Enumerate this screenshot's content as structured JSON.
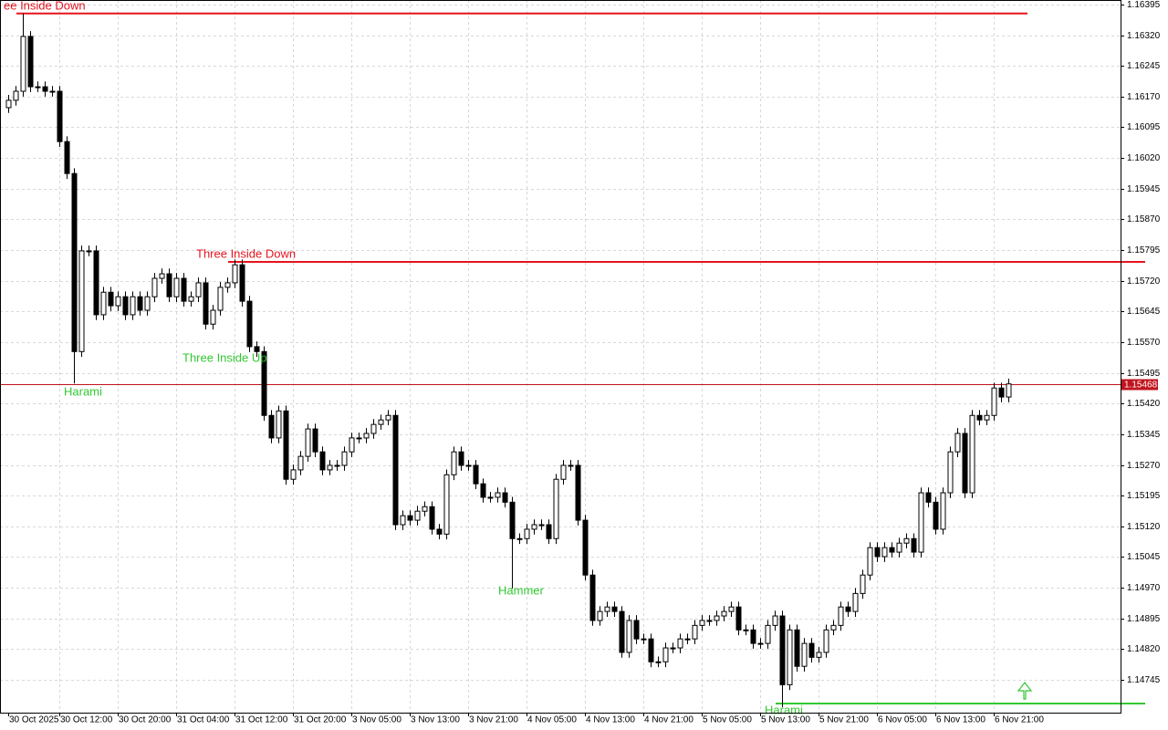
{
  "chart_data": {
    "type": "candlestick",
    "categories": [
      "30 Oct 2025",
      null,
      null,
      null,
      null,
      null,
      null,
      "30 Oct 12:00",
      null,
      null,
      null,
      null,
      null,
      null,
      null,
      "30 Oct 20:00",
      null,
      null,
      null,
      null,
      null,
      null,
      null,
      "31 Oct 04:00",
      null,
      null,
      null,
      null,
      null,
      null,
      null,
      "31 Oct 12:00",
      null,
      null,
      null,
      null,
      null,
      null,
      null,
      "31 Oct 20:00",
      null,
      null,
      null,
      null,
      null,
      null,
      null,
      "3 Nov 05:00",
      null,
      null,
      null,
      null,
      null,
      null,
      null,
      "3 Nov 13:00",
      null,
      null,
      null,
      null,
      null,
      null,
      null,
      "3 Nov 21:00",
      null,
      null,
      null,
      null,
      null,
      null,
      null,
      "4 Nov 05:00",
      null,
      null,
      null,
      null,
      null,
      null,
      null,
      "4 Nov 13:00",
      null,
      null,
      null,
      null,
      null,
      null,
      null,
      "4 Nov 21:00",
      null,
      null,
      null,
      null,
      null,
      null,
      null,
      "5 Nov 05:00",
      null,
      null,
      null,
      null,
      null,
      null,
      null,
      "5 Nov 13:00",
      null,
      null,
      null,
      null,
      null,
      null,
      null,
      "5 Nov 21:00",
      null,
      null,
      null,
      null,
      null,
      null,
      null,
      "6 Nov 05:00",
      null,
      null,
      null,
      null,
      null,
      null,
      null,
      "6 Nov 13:00",
      null,
      null,
      null,
      null,
      null,
      null,
      null,
      "6 Nov 21:00",
      null,
      null
    ],
    "open": [
      1.16143,
      1.16161,
      1.16183,
      1.16317,
      1.16194,
      1.16194,
      1.16183,
      1.16183,
      1.1606,
      1.15982,
      1.15547,
      1.15793,
      1.15793,
      1.15637,
      1.15692,
      1.15659,
      1.15681,
      1.15637,
      1.15681,
      1.15648,
      1.15681,
      1.15726,
      1.15737,
      1.15681,
      1.15726,
      1.1567,
      1.15681,
      1.15715,
      1.15614,
      1.15648,
      1.15704,
      1.15715,
      1.15759,
      1.1567,
      1.15559,
      1.15547,
      1.15391,
      1.15336,
      1.15402,
      1.15235,
      1.15258,
      1.15291,
      1.15358,
      1.15302,
      1.15258,
      1.15269,
      1.15269,
      1.15302,
      1.15336,
      1.15336,
      1.15347,
      1.15369,
      1.1538,
      1.15391,
      1.15124,
      1.15146,
      1.15135,
      1.15157,
      1.15168,
      1.15113,
      1.15101,
      1.15246,
      1.15302,
      1.15269,
      1.15269,
      1.15224,
      1.15191,
      1.15191,
      1.15202,
      1.15179,
      1.1509,
      1.1509,
      1.15113,
      1.15124,
      1.15124,
      1.1509,
      1.15235,
      1.15269,
      1.15269,
      1.15135,
      1.15001,
      1.1489,
      1.14912,
      1.14923,
      1.14912,
      1.14812,
      1.1489,
      1.14845,
      1.14845,
      1.14789,
      1.14789,
      1.14823,
      1.14823,
      1.14845,
      1.14845,
      1.14878,
      1.1489,
      1.1489,
      1.14901,
      1.14912,
      1.14923,
      1.14867,
      1.14867,
      1.14834,
      1.14834,
      1.14878,
      1.14901,
      1.14733,
      1.14867,
      1.14778,
      1.14834,
      1.148,
      1.14812,
      1.14867,
      1.14878,
      1.14923,
      1.14912,
      1.14956,
      1.15001,
      1.15068,
      1.15046,
      1.15068,
      1.15057,
      1.15079,
      1.1509,
      1.15057,
      1.15202,
      1.15179,
      1.15113,
      1.15202,
      1.15302,
      1.15347,
      1.15202,
      1.15391,
      1.1538,
      1.15391,
      1.15458,
      1.15436
    ],
    "high": [
      1.16174,
      1.16196,
      1.16373,
      1.1633,
      1.16207,
      1.16207,
      1.16196,
      1.16196,
      1.16073,
      1.15995,
      1.15806,
      1.15806,
      1.15806,
      1.15705,
      1.15705,
      1.15694,
      1.15694,
      1.15694,
      1.15694,
      1.15694,
      1.15739,
      1.1575,
      1.1575,
      1.15739,
      1.15739,
      1.15694,
      1.15728,
      1.15728,
      1.15661,
      1.15717,
      1.15728,
      1.15772,
      1.15772,
      1.15683,
      1.15572,
      1.1556,
      1.15404,
      1.15415,
      1.15415,
      1.15271,
      1.15304,
      1.15371,
      1.15371,
      1.15315,
      1.15282,
      1.15282,
      1.15315,
      1.15349,
      1.15349,
      1.1536,
      1.15382,
      1.15393,
      1.15404,
      1.15404,
      1.15159,
      1.15159,
      1.1517,
      1.15181,
      1.15181,
      1.15126,
      1.15259,
      1.15315,
      1.15315,
      1.15282,
      1.15282,
      1.15237,
      1.15204,
      1.15215,
      1.15215,
      1.15192,
      1.15103,
      1.15126,
      1.15137,
      1.15137,
      1.15137,
      1.15248,
      1.15282,
      1.15282,
      1.15282,
      1.15148,
      1.15014,
      1.14925,
      1.14936,
      1.14936,
      1.14925,
      1.14903,
      1.14903,
      1.14858,
      1.14858,
      1.14802,
      1.14836,
      1.14836,
      1.14858,
      1.14858,
      1.14891,
      1.14903,
      1.14903,
      1.14914,
      1.14925,
      1.14936,
      1.14936,
      1.1488,
      1.1488,
      1.14847,
      1.14891,
      1.14914,
      1.14914,
      1.1488,
      1.1488,
      1.14847,
      1.14847,
      1.14825,
      1.1488,
      1.14891,
      1.14936,
      1.14936,
      1.14969,
      1.15014,
      1.15081,
      1.15081,
      1.15081,
      1.15081,
      1.15092,
      1.15103,
      1.15103,
      1.15215,
      1.15215,
      1.15192,
      1.15215,
      1.15315,
      1.1536,
      1.1536,
      1.15404,
      1.15404,
      1.15404,
      1.15471,
      1.15471,
      1.15481
    ],
    "low": [
      1.1613,
      1.16148,
      1.1617,
      1.16181,
      1.16181,
      1.1617,
      1.1617,
      1.16047,
      1.15969,
      1.15469,
      1.15534,
      1.1578,
      1.15624,
      1.15624,
      1.15646,
      1.15646,
      1.15624,
      1.15624,
      1.15635,
      1.15635,
      1.15668,
      1.15713,
      1.15668,
      1.15668,
      1.15657,
      1.15657,
      1.15668,
      1.15601,
      1.15601,
      1.15635,
      1.15691,
      1.15702,
      1.15657,
      1.15546,
      1.15534,
      1.15378,
      1.15323,
      1.15323,
      1.15222,
      1.15222,
      1.15245,
      1.15278,
      1.15289,
      1.15245,
      1.15245,
      1.15256,
      1.15256,
      1.15289,
      1.15323,
      1.15323,
      1.15334,
      1.15356,
      1.15367,
      1.15111,
      1.15111,
      1.15122,
      1.15122,
      1.15144,
      1.151,
      1.15088,
      1.15088,
      1.15233,
      1.15256,
      1.15256,
      1.15211,
      1.15178,
      1.15178,
      1.15178,
      1.15166,
      1.14968,
      1.15077,
      1.15077,
      1.151,
      1.15111,
      1.15077,
      1.15077,
      1.15222,
      1.15256,
      1.15122,
      1.14988,
      1.14877,
      1.14877,
      1.14899,
      1.14899,
      1.14799,
      1.14799,
      1.14832,
      1.14832,
      1.14776,
      1.14776,
      1.14776,
      1.1481,
      1.1481,
      1.14832,
      1.14832,
      1.14865,
      1.14877,
      1.14877,
      1.14888,
      1.14899,
      1.14854,
      1.14854,
      1.14821,
      1.14821,
      1.14821,
      1.14865,
      1.14678,
      1.1472,
      1.14765,
      1.14765,
      1.14787,
      1.14787,
      1.14799,
      1.14854,
      1.14865,
      1.14899,
      1.14899,
      1.14943,
      1.14988,
      1.15033,
      1.15033,
      1.15044,
      1.15044,
      1.15066,
      1.15044,
      1.15044,
      1.15166,
      1.151,
      1.151,
      1.15189,
      1.15289,
      1.15189,
      1.15189,
      1.15367,
      1.15367,
      1.15378,
      1.15423,
      1.15423
    ],
    "close": [
      1.16161,
      1.16183,
      1.16317,
      1.16194,
      1.16194,
      1.16183,
      1.16183,
      1.1606,
      1.15982,
      1.15547,
      1.15793,
      1.15793,
      1.15637,
      1.15692,
      1.15659,
      1.15681,
      1.15637,
      1.15681,
      1.15648,
      1.15681,
      1.15726,
      1.15737,
      1.15681,
      1.15726,
      1.1567,
      1.15681,
      1.15715,
      1.15614,
      1.15648,
      1.15704,
      1.15715,
      1.15759,
      1.1567,
      1.15559,
      1.15547,
      1.15391,
      1.15336,
      1.15402,
      1.15235,
      1.15258,
      1.15291,
      1.15358,
      1.15302,
      1.15258,
      1.15269,
      1.15269,
      1.15302,
      1.15336,
      1.15336,
      1.15347,
      1.15369,
      1.1538,
      1.15391,
      1.15124,
      1.15146,
      1.15135,
      1.15157,
      1.15168,
      1.15113,
      1.15101,
      1.15246,
      1.15302,
      1.15269,
      1.15269,
      1.15224,
      1.15191,
      1.15191,
      1.15202,
      1.15179,
      1.1509,
      1.1509,
      1.15113,
      1.15124,
      1.15124,
      1.1509,
      1.15235,
      1.15269,
      1.15269,
      1.15135,
      1.15001,
      1.1489,
      1.14912,
      1.14923,
      1.14912,
      1.14812,
      1.1489,
      1.14845,
      1.14845,
      1.14789,
      1.14789,
      1.14823,
      1.14823,
      1.14845,
      1.14845,
      1.14878,
      1.1489,
      1.1489,
      1.14901,
      1.14912,
      1.14923,
      1.14867,
      1.14867,
      1.14834,
      1.14834,
      1.14878,
      1.14901,
      1.14733,
      1.14867,
      1.14778,
      1.14834,
      1.148,
      1.14812,
      1.14867,
      1.14878,
      1.14923,
      1.14912,
      1.14956,
      1.15001,
      1.15068,
      1.15046,
      1.15068,
      1.15057,
      1.15079,
      1.1509,
      1.15057,
      1.15202,
      1.15179,
      1.15113,
      1.15202,
      1.15302,
      1.15347,
      1.15202,
      1.15391,
      1.1538,
      1.15391,
      1.15458,
      1.15436,
      1.15468
    ],
    "up_color": "#ffffff",
    "down_color": "#000000",
    "ylim": [
      1.14667,
      1.16406
    ],
    "yticks": [
      1.16395,
      {
        "value": 1.1632,
        "label": "1.16320"
      },
      1.16245,
      {
        "value": 1.1617,
        "label": "1.16170"
      },
      1.16095,
      {
        "value": 1.1602,
        "label": "1.16020"
      },
      1.15945,
      {
        "value": 1.1587,
        "label": "1.15870"
      },
      1.15795,
      {
        "value": 1.1572,
        "label": "1.15720"
      },
      1.15645,
      {
        "value": 1.1557,
        "label": "1.15570"
      },
      1.15495,
      {
        "value": 1.1542,
        "label": "1.15420"
      },
      1.15345,
      {
        "value": 1.1527,
        "label": "1.15270"
      },
      1.15195,
      {
        "value": 1.1512,
        "label": "1.15120"
      },
      1.15045,
      {
        "value": 1.1497,
        "label": "1.14970"
      },
      1.14895,
      {
        "value": 1.1482,
        "label": "1.14820"
      },
      1.14745
    ],
    "grid": true,
    "current_price": 1.15468,
    "current_price_color": "#c0141e",
    "levels": [
      {
        "value": 1.16373,
        "color": "#e5141e"
      },
      {
        "value": 1.15766,
        "color": "#e5141e"
      },
      {
        "value": 1.14687,
        "color": "#32c832"
      }
    ],
    "annotations": [
      {
        "text": "ee Inside Down",
        "color": "#e5141e"
      },
      {
        "text": "Three Inside Down",
        "color": "#e5141e"
      },
      {
        "text": "Three Inside Up",
        "color": "#32c832"
      },
      {
        "text": "Harami",
        "color": "#32c832"
      },
      {
        "text": "Hammer",
        "color": "#32c832"
      },
      {
        "text": "Harami",
        "color": "#32c832"
      }
    ]
  }
}
